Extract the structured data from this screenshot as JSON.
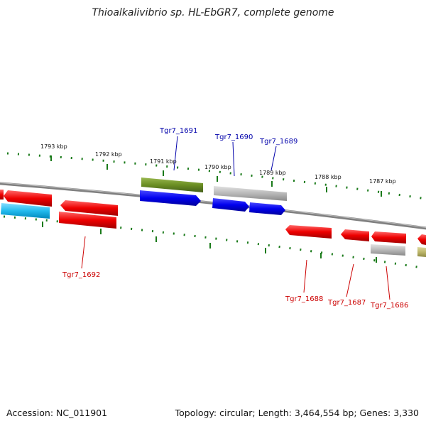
{
  "title": "Thioalkalivibrio sp. HL-EbGR7, complete genome",
  "footer": {
    "accession": "Accession: NC_011901",
    "topology": "Topology: circular; Length: 3,464,554 bp; Genes: 3,330"
  },
  "scale_labels": [
    "1793 kbp",
    "1792 kbp",
    "1791 kbp",
    "1790 kbp",
    "1789 kbp",
    "1788 kbp",
    "1787 kbp"
  ],
  "gene_labels": [
    {
      "text": "Tgr7_1691",
      "strand": "forward"
    },
    {
      "text": "Tgr7_1690",
      "strand": "forward"
    },
    {
      "text": "Tgr7_1689",
      "strand": "forward"
    },
    {
      "text": "Tgr7_1692",
      "strand": "reverse"
    },
    {
      "text": "Tgr7_1688",
      "strand": "reverse"
    },
    {
      "text": "Tgr7_1687",
      "strand": "reverse"
    },
    {
      "text": "Tgr7_1686",
      "strand": "reverse"
    }
  ],
  "colors": {
    "forward_cds": "#0000ee",
    "reverse_cds": "#ee0000",
    "forward_label": "#0000aa",
    "reverse_label": "#cc0000",
    "rna_cyan": "#22bbee",
    "olive": "#6b8e23",
    "gray_feature": "#b8b8b8",
    "khaki": "#bdb76b",
    "backbone": "#808080",
    "tick": "#1a7a1a"
  }
}
